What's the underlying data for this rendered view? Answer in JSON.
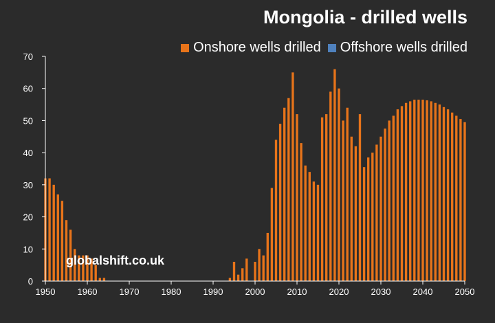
{
  "colors": {
    "background": "#2b2b2b",
    "onshore": "#e8741a",
    "offshore": "#4f81bd",
    "axis": "#ffffff"
  },
  "watermark": "globalshift.co.uk",
  "chart_data": {
    "type": "bar",
    "title": "Mongolia - drilled wells",
    "xlabel": "",
    "ylabel": "",
    "legend_position": "top-right",
    "grid": false,
    "xlim": [
      1950,
      2050
    ],
    "ylim": [
      0,
      70
    ],
    "x_ticks": [
      1950,
      1960,
      1970,
      1980,
      1990,
      2000,
      2010,
      2020,
      2030,
      2040,
      2050
    ],
    "y_ticks": [
      0,
      10,
      20,
      30,
      40,
      50,
      60,
      70
    ],
    "series": [
      {
        "name": "Onshore wells drilled",
        "color": "#e8741a",
        "points": [
          [
            1950,
            32
          ],
          [
            1951,
            32
          ],
          [
            1952,
            30
          ],
          [
            1953,
            27
          ],
          [
            1954,
            25
          ],
          [
            1955,
            19
          ],
          [
            1956,
            16
          ],
          [
            1957,
            10
          ],
          [
            1958,
            8
          ],
          [
            1959,
            8
          ],
          [
            1960,
            8
          ],
          [
            1961,
            7
          ],
          [
            1962,
            5
          ],
          [
            1963,
            1
          ],
          [
            1964,
            1
          ],
          [
            1994,
            1
          ],
          [
            1995,
            6
          ],
          [
            1996,
            2
          ],
          [
            1997,
            4
          ],
          [
            1998,
            7
          ],
          [
            2000,
            6
          ],
          [
            2001,
            10
          ],
          [
            2002,
            8
          ],
          [
            2003,
            15
          ],
          [
            2004,
            29
          ],
          [
            2005,
            44
          ],
          [
            2006,
            49
          ],
          [
            2007,
            54
          ],
          [
            2008,
            57
          ],
          [
            2009,
            65
          ],
          [
            2010,
            52
          ],
          [
            2011,
            43
          ],
          [
            2012,
            36
          ],
          [
            2013,
            34
          ],
          [
            2014,
            31
          ],
          [
            2015,
            30
          ],
          [
            2016,
            51
          ],
          [
            2017,
            52
          ],
          [
            2018,
            59
          ],
          [
            2019,
            66
          ],
          [
            2020,
            60
          ],
          [
            2021,
            50
          ],
          [
            2022,
            54
          ],
          [
            2023,
            45
          ],
          [
            2024,
            42
          ],
          [
            2025,
            52
          ],
          [
            2026,
            35.5
          ],
          [
            2027,
            38.5
          ],
          [
            2028,
            40
          ],
          [
            2029,
            42.5
          ],
          [
            2030,
            45
          ],
          [
            2031,
            47.5
          ],
          [
            2032,
            50
          ],
          [
            2033,
            51.5
          ],
          [
            2034,
            53.5
          ],
          [
            2035,
            54.5
          ],
          [
            2036,
            55.5
          ],
          [
            2037,
            56
          ],
          [
            2038,
            56.5
          ],
          [
            2039,
            56.5
          ],
          [
            2040,
            56.5
          ],
          [
            2041,
            56.3
          ],
          [
            2042,
            56
          ],
          [
            2043,
            55.5
          ],
          [
            2044,
            55
          ],
          [
            2045,
            54.2
          ],
          [
            2046,
            53.5
          ],
          [
            2047,
            52.5
          ],
          [
            2048,
            51.5
          ],
          [
            2049,
            50.5
          ],
          [
            2050,
            49.5
          ]
        ]
      },
      {
        "name": "Offshore wells drilled",
        "color": "#4f81bd",
        "points": []
      }
    ]
  }
}
